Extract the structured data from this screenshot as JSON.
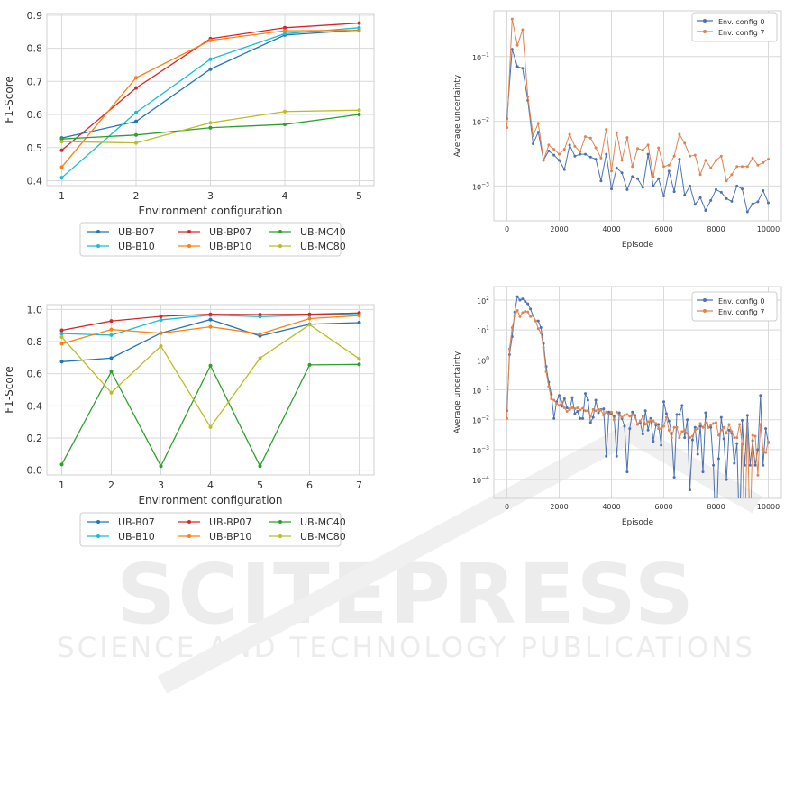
{
  "watermark": {
    "title": "SCITEPRESS",
    "subtitle": "SCIENCE AND TECHNOLOGY PUBLICATIONS"
  },
  "chart_data": [
    {
      "type": "line",
      "id": "f1-5",
      "xlabel": "Environment configuration",
      "ylabel": "F1-Score",
      "x": [
        1,
        2,
        3,
        4,
        5
      ],
      "xlim": [
        0.8,
        5.2
      ],
      "ylim": [
        0.385,
        0.905
      ],
      "yticks": [
        0.4,
        0.5,
        0.6,
        0.7,
        0.8,
        0.9
      ],
      "ytick_labels": [
        "0.4",
        "0.5",
        "0.6",
        "0.7",
        "0.8",
        "0.9"
      ],
      "xticks": [
        1,
        2,
        3,
        4,
        5
      ],
      "xtick_labels": [
        "1",
        "2",
        "3",
        "4",
        "5"
      ],
      "grid": true,
      "legend": "below",
      "series": [
        {
          "name": "UB-B07",
          "color": "#1f77b4",
          "values": [
            0.529,
            0.579,
            0.737,
            0.84,
            0.855
          ]
        },
        {
          "name": "UB-B10",
          "color": "#17becf",
          "values": [
            0.409,
            0.606,
            0.767,
            0.844,
            0.862
          ]
        },
        {
          "name": "UB-BP07",
          "color": "#d62728",
          "values": [
            0.492,
            0.68,
            0.829,
            0.862,
            0.876
          ]
        },
        {
          "name": "UB-BP10",
          "color": "#ff7f0e",
          "values": [
            0.441,
            0.711,
            0.824,
            0.853,
            0.854
          ]
        },
        {
          "name": "UB-MC40",
          "color": "#2ca02c",
          "values": [
            0.526,
            0.538,
            0.56,
            0.57,
            0.6
          ]
        },
        {
          "name": "UB-MC80",
          "color": "#bcbd22",
          "values": [
            0.518,
            0.514,
            0.575,
            0.609,
            0.613
          ]
        }
      ]
    },
    {
      "type": "line",
      "id": "f1-7",
      "xlabel": "Environment configuration",
      "ylabel": "F1-Score",
      "x": [
        1,
        2,
        3,
        4,
        5,
        6,
        7
      ],
      "xlim": [
        0.7,
        7.3
      ],
      "ylim": [
        -0.03,
        1.03
      ],
      "yticks": [
        0,
        0.2,
        0.4,
        0.6,
        0.8,
        1.0
      ],
      "ytick_labels": [
        "0.0",
        "0.2",
        "0.4",
        "0.6",
        "0.8",
        "1.0"
      ],
      "xticks": [
        1,
        2,
        3,
        4,
        5,
        6,
        7
      ],
      "xtick_labels": [
        "1",
        "2",
        "3",
        "4",
        "5",
        "6",
        "7"
      ],
      "grid": true,
      "legend": "below",
      "series": [
        {
          "name": "UB-B07",
          "color": "#1f77b4",
          "values": [
            0.675,
            0.697,
            0.853,
            0.937,
            0.835,
            0.908,
            0.918
          ]
        },
        {
          "name": "UB-B10",
          "color": "#17becf",
          "values": [
            0.85,
            0.84,
            0.935,
            0.965,
            0.955,
            0.965,
            0.975
          ]
        },
        {
          "name": "UB-BP07",
          "color": "#d62728",
          "values": [
            0.87,
            0.928,
            0.957,
            0.97,
            0.968,
            0.97,
            0.978
          ]
        },
        {
          "name": "UB-BP10",
          "color": "#ff7f0e",
          "values": [
            0.787,
            0.875,
            0.852,
            0.892,
            0.848,
            0.943,
            0.962
          ]
        },
        {
          "name": "UB-MC40",
          "color": "#2ca02c",
          "values": [
            0.035,
            0.613,
            0.025,
            0.65,
            0.025,
            0.655,
            0.658
          ]
        },
        {
          "name": "UB-MC80",
          "color": "#bcbd22",
          "values": [
            0.828,
            0.482,
            0.772,
            0.268,
            0.697,
            0.905,
            0.693
          ]
        }
      ]
    },
    {
      "type": "line",
      "id": "unc-a",
      "yscale": "log",
      "xlabel": "Episode",
      "ylabel": "Average uncertainty",
      "xlim": [
        -500,
        10500
      ],
      "ylim": [
        0.00029,
        0.51
      ],
      "xticks": [
        0,
        2000,
        4000,
        6000,
        8000,
        10000
      ],
      "xtick_labels": [
        "0",
        "2000",
        "4000",
        "6000",
        "8000",
        "10000"
      ],
      "yticks": [
        0.1,
        0.01,
        0.001
      ],
      "ytick_labels": [
        [
          "10",
          "−1"
        ],
        [
          "10",
          "−2"
        ],
        [
          "10",
          "−3"
        ]
      ],
      "grid": true,
      "legend": "top-right",
      "x": [
        0,
        200,
        400,
        600,
        800,
        1000,
        1200,
        1400,
        1600,
        1800,
        2000,
        2200,
        2400,
        2600,
        2800,
        3000,
        3200,
        3400,
        3600,
        3800,
        4000,
        4200,
        4400,
        4600,
        4800,
        5000,
        5200,
        5400,
        5600,
        5800,
        6000,
        6200,
        6400,
        6600,
        6800,
        7000,
        7200,
        7400,
        7600,
        7800,
        8000,
        8200,
        8400,
        8600,
        8800,
        9000,
        9200,
        9400,
        9600,
        9800,
        10000
      ],
      "series": [
        {
          "name": "Env. config 0",
          "color": "#4c72b0",
          "values": [
            0.011,
            0.13,
            0.07,
            0.066,
            0.021,
            0.0045,
            0.0068,
            0.0025,
            0.0035,
            0.003,
            0.0025,
            0.0018,
            0.0043,
            0.0029,
            0.0031,
            0.0031,
            0.0028,
            0.0026,
            0.0012,
            0.0031,
            0.0009,
            0.0019,
            0.0016,
            0.00088,
            0.0014,
            0.0013,
            0.00095,
            0.0031,
            0.001,
            0.0013,
            0.0007,
            0.0017,
            0.00082,
            0.0026,
            0.00072,
            0.001,
            0.00052,
            0.00066,
            0.00042,
            0.0006,
            0.00088,
            0.0008,
            0.00064,
            0.00058,
            0.001,
            0.0009,
            0.0004,
            0.00053,
            0.00057,
            0.00085,
            0.00055
          ]
        },
        {
          "name": "Env. config 7",
          "color": "#dd8452",
          "values": [
            0.008,
            0.38,
            0.15,
            0.26,
            0.024,
            0.006,
            0.0093,
            0.0025,
            0.0043,
            0.0037,
            0.0031,
            0.0037,
            0.0063,
            0.0041,
            0.0034,
            0.0058,
            0.0055,
            0.0039,
            0.0027,
            0.0075,
            0.0017,
            0.0067,
            0.0025,
            0.0056,
            0.002,
            0.0038,
            0.0036,
            0.0043,
            0.0014,
            0.0039,
            0.002,
            0.0021,
            0.0029,
            0.0063,
            0.0046,
            0.0029,
            0.003,
            0.0015,
            0.0025,
            0.0019,
            0.0025,
            0.0029,
            0.0012,
            0.0015,
            0.002,
            0.002,
            0.002,
            0.0027,
            0.0021,
            0.0023,
            0.0026
          ]
        }
      ]
    },
    {
      "type": "line",
      "id": "unc-b",
      "yscale": "log",
      "xlabel": "Episode",
      "ylabel": "Average uncertainty",
      "xlim": [
        -500,
        10500
      ],
      "ylim": [
        2.34e-05,
        282
      ],
      "xticks": [
        0,
        2000,
        4000,
        6000,
        8000,
        10000
      ],
      "xtick_labels": [
        "0",
        "2000",
        "4000",
        "6000",
        "8000",
        "10000"
      ],
      "yticks": [
        100,
        10,
        1,
        0.1,
        0.01,
        0.001,
        0.0001
      ],
      "ytick_labels": [
        [
          "10",
          "2"
        ],
        [
          "10",
          "1"
        ],
        [
          "10",
          "0"
        ],
        [
          "10",
          "−1"
        ],
        [
          "10",
          "−2"
        ],
        [
          "10",
          "−3"
        ],
        [
          "10",
          "−4"
        ]
      ],
      "grid": true,
      "legend": "top-right",
      "x": [
        0,
        100,
        200,
        300,
        400,
        500,
        600,
        700,
        800,
        900,
        1000,
        1100,
        1200,
        1300,
        1400,
        1500,
        1600,
        1700,
        1800,
        1900,
        2000,
        2100,
        2200,
        2300,
        2400,
        2500,
        2600,
        2700,
        2800,
        2900,
        3000,
        3100,
        3200,
        3300,
        3400,
        3500,
        3600,
        3700,
        3800,
        3900,
        4000,
        4100,
        4200,
        4300,
        4400,
        4500,
        4600,
        4700,
        4800,
        4900,
        5000,
        5100,
        5200,
        5300,
        5400,
        5500,
        5600,
        5700,
        5800,
        5900,
        6000,
        6100,
        6200,
        6300,
        6400,
        6500,
        6600,
        6700,
        6800,
        6900,
        7000,
        7100,
        7200,
        7300,
        7400,
        7500,
        7600,
        7700,
        7800,
        7900,
        8000,
        8100,
        8200,
        8300,
        8400,
        8500,
        8600,
        8700,
        8800,
        8900,
        9000,
        9100,
        9200,
        9300,
        9400,
        9500,
        9600,
        9700,
        9800,
        9900,
        10000
      ],
      "series": [
        {
          "name": "Env. config 0",
          "color": "#4c72b0",
          "values": [
            0.02,
            1.5,
            6,
            40,
            130,
            100,
            110,
            90,
            75,
            50,
            30,
            20,
            20,
            12,
            3.5,
            0.6,
            0.18,
            0.07,
            0.011,
            0.04,
            0.065,
            0.028,
            0.05,
            0.025,
            0.022,
            0.055,
            0.016,
            0.019,
            0.011,
            0.011,
            0.075,
            0.045,
            0.008,
            0.012,
            0.045,
            0.017,
            0.022,
            0.023,
            0.0006,
            0.018,
            0.016,
            0.013,
            0.0006,
            0.017,
            0.011,
            0.006,
            0.00018,
            0.005,
            0.018,
            0.014,
            0.007,
            0.008,
            0.0033,
            0.02,
            0.0045,
            0.011,
            0.0019,
            0.0065,
            0.007,
            0.0014,
            0.04,
            0.016,
            0.009,
            0.0035,
            0.00012,
            0.015,
            0.015,
            0.03,
            0.0025,
            0.01,
            4.5e-05,
            0.0021,
            0.0055,
            0.0007,
            0.006,
            0.00018,
            0.017,
            0.0055,
            0.0055,
            0.0003,
            1e-06,
            0.0005,
            0.012,
            0.0023,
            0.0001,
            0.0045,
            0.0035,
            0.00035,
            0.0016,
            1e-06,
            0.0095,
            0.0003,
            0.014,
            0.0003,
            0.002,
            0.0003,
            0.001,
            0.065,
            0.0003,
            0.005,
            0.0017
          ]
        },
        {
          "name": "Env. config 7",
          "color": "#dd8452",
          "values": [
            0.011,
            2.3,
            12,
            28,
            45,
            28,
            38,
            42,
            40,
            28,
            30,
            20,
            11,
            8,
            2.6,
            0.4,
            0.13,
            0.05,
            0.045,
            0.035,
            0.03,
            0.04,
            0.025,
            0.019,
            0.023,
            0.025,
            0.023,
            0.025,
            0.021,
            0.024,
            0.02,
            0.02,
            0.013,
            0.022,
            0.02,
            0.022,
            0.021,
            0.014,
            0.018,
            0.015,
            0.018,
            0.01,
            0.018,
            0.014,
            0.012,
            0.014,
            0.015,
            0.013,
            0.015,
            0.012,
            0.007,
            0.009,
            0.013,
            0.007,
            0.0085,
            0.0095,
            0.009,
            0.0075,
            0.005,
            0.005,
            0.006,
            0.012,
            0.0045,
            0.0025,
            0.0055,
            0.0055,
            0.0025,
            0.004,
            0.0045,
            0.0035,
            0.0025,
            0.0028,
            0.0045,
            0.005,
            0.0075,
            0.0055,
            0.008,
            0.0055,
            0.0065,
            0.0075,
            0.008,
            0.003,
            0.0045,
            0.0055,
            0.0035,
            0.007,
            0.004,
            0.0025,
            0.0025,
            0.007,
            0.0015,
            1e-06,
            0.0075,
            1e-06,
            0.003,
            0.0028,
            0.00014,
            0.007,
            0.001,
            0.0008,
            0.0018
          ]
        }
      ]
    }
  ]
}
